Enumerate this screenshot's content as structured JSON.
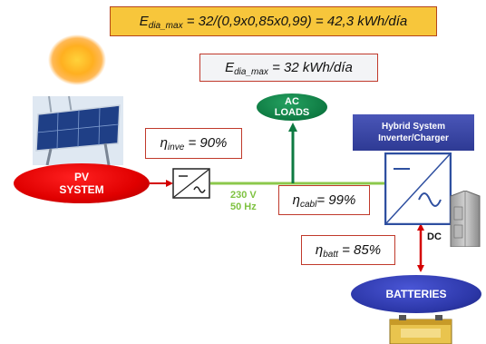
{
  "formulas": {
    "top": {
      "var": "E",
      "sub": "dia_max",
      "rest": " = 32/(0,9x0,85x0,99) = 42,3 kWh/día"
    },
    "mid": {
      "var": "E",
      "sub": "dia_max",
      "rest": " = 32  kWh/día"
    },
    "eta_inve": {
      "var": "η",
      "sub": "inve",
      "rest": " = 90%"
    },
    "eta_cabl": {
      "var": "η",
      "sub": "cabl",
      "rest": "= 99%"
    },
    "eta_batt": {
      "var": "η",
      "sub": "batt",
      "rest": " = 85%"
    }
  },
  "nodes": {
    "pv_line1": "PV",
    "pv_line2": "SYSTEM",
    "ac_line1": "AC",
    "ac_line2": "LOADS",
    "hybrid_line1": "Hybrid System",
    "hybrid_line2": "Inverter/Charger",
    "batteries": "BATTERIES"
  },
  "labels": {
    "voltage": "230 V",
    "frequency": "50 Hz",
    "dc": "DC"
  },
  "colors": {
    "formula_bg": "#f7c63b",
    "pv": "#e00000",
    "ac_loads": "#0e7a42",
    "hybrid": "#2e3a94",
    "batteries": "#2c37a8",
    "ac_bus": "#8cc84b",
    "red_link": "#d40000",
    "green_link": "#0e7a42"
  },
  "icons": [
    "sun-icon",
    "solar-panel-icon",
    "inverter-symbol-icon",
    "hybrid-inverter-icon",
    "cabinet-icon",
    "battery-icon"
  ]
}
